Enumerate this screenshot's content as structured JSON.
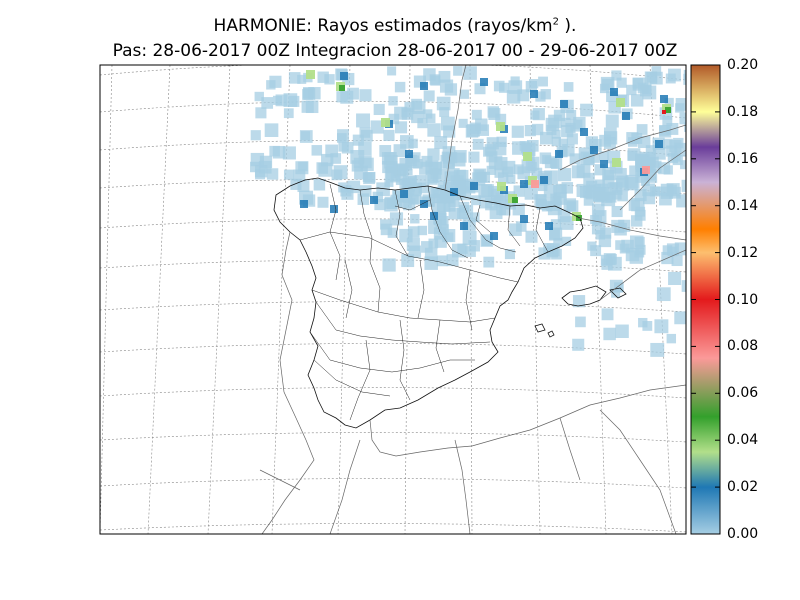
{
  "title": {
    "line1_main": "HARMONIE: Rayos estimados  (rayos/km",
    "line1_sup": "2",
    "line1_end": " ).",
    "line2": "Pas: 28-06-2017 00Z Integracion 28-06-2017 00 - 29-06-2017 00Z"
  },
  "colorbar": {
    "ticks": [
      "0.00",
      "0.02",
      "0.04",
      "0.06",
      "0.08",
      "0.10",
      "0.12",
      "0.14",
      "0.16",
      "0.18",
      "0.20"
    ],
    "range": [
      0,
      0.2
    ],
    "stops": [
      {
        "v": 0.0,
        "color": "#a6cee3"
      },
      {
        "v": 0.02,
        "color": "#1f78b4"
      },
      {
        "v": 0.035,
        "color": "#b2df8a"
      },
      {
        "v": 0.05,
        "color": "#33a02c"
      },
      {
        "v": 0.075,
        "color": "#fb9a99"
      },
      {
        "v": 0.1,
        "color": "#e31a1c"
      },
      {
        "v": 0.12,
        "color": "#fdbf6f"
      },
      {
        "v": 0.13,
        "color": "#ff7f00"
      },
      {
        "v": 0.15,
        "color": "#cab2d6"
      },
      {
        "v": 0.165,
        "color": "#6a3d9a"
      },
      {
        "v": 0.18,
        "color": "#ffff99"
      },
      {
        "v": 0.2,
        "color": "#b15928"
      }
    ]
  },
  "map": {
    "grid_lines": "dotted graticule",
    "field": "lightning density (rayos/km2)",
    "regions": [
      "Iberian Peninsula",
      "Balearic Islands",
      "southern France",
      "northern Africa"
    ]
  }
}
